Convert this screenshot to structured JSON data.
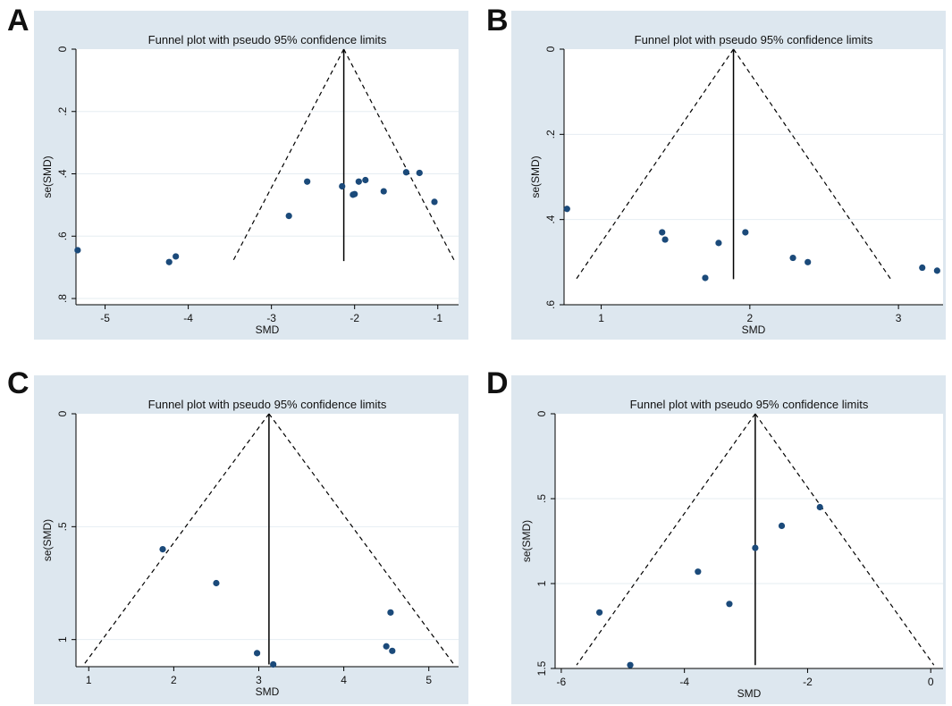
{
  "figure": {
    "colors": {
      "panel_background": "#dde7ef",
      "plot_background": "#ffffff",
      "marker": "#1b4a7a",
      "line": "#000000",
      "gridline": "#e6edf2"
    }
  },
  "chart_data": [
    {
      "panel": "A",
      "type": "scatter",
      "title": "Funnel plot with pseudo 95% confidence limits",
      "xlabel": "SMD",
      "ylabel": "se(SMD)",
      "xlim": [
        -5.35,
        -0.75
      ],
      "ylim": [
        0,
        0.82
      ],
      "y_inverted": true,
      "xticks": [
        -5,
        -4,
        -3,
        -2,
        -1
      ],
      "xtick_labels": [
        "-5",
        "-4",
        "-3",
        "-2",
        "-1"
      ],
      "yticks": [
        0,
        0.2,
        0.4,
        0.6,
        0.8
      ],
      "ytick_labels": [
        "0",
        ".2",
        ".4",
        ".6",
        ".8"
      ],
      "pooled_estimate": -2.13,
      "funnel_max_se": 0.68,
      "points": [
        {
          "x": -5.33,
          "y": 0.645
        },
        {
          "x": -4.23,
          "y": 0.683
        },
        {
          "x": -4.15,
          "y": 0.665
        },
        {
          "x": -2.79,
          "y": 0.535
        },
        {
          "x": -2.57,
          "y": 0.425
        },
        {
          "x": -2.15,
          "y": 0.44
        },
        {
          "x": -2.02,
          "y": 0.467
        },
        {
          "x": -2.0,
          "y": 0.465
        },
        {
          "x": -1.95,
          "y": 0.425
        },
        {
          "x": -1.87,
          "y": 0.42
        },
        {
          "x": -1.65,
          "y": 0.456
        },
        {
          "x": -1.38,
          "y": 0.395
        },
        {
          "x": -1.22,
          "y": 0.397
        },
        {
          "x": -1.04,
          "y": 0.49
        }
      ]
    },
    {
      "panel": "B",
      "type": "scatter",
      "title": "Funnel plot with pseudo 95% confidence limits",
      "xlabel": "SMD",
      "ylabel": "se(SMD)",
      "xlim": [
        0.75,
        3.3
      ],
      "ylim": [
        0,
        0.6
      ],
      "y_inverted": true,
      "xticks": [
        1,
        2,
        3
      ],
      "xtick_labels": [
        "1",
        "2",
        "3"
      ],
      "yticks": [
        0,
        0.2,
        0.4,
        0.6
      ],
      "ytick_labels": [
        "0",
        ".2",
        ".4",
        ".6"
      ],
      "pooled_estimate": 1.89,
      "funnel_max_se": 0.54,
      "points": [
        {
          "x": 0.77,
          "y": 0.375
        },
        {
          "x": 1.41,
          "y": 0.43
        },
        {
          "x": 1.43,
          "y": 0.447
        },
        {
          "x": 1.7,
          "y": 0.537
        },
        {
          "x": 1.79,
          "y": 0.455
        },
        {
          "x": 1.97,
          "y": 0.43
        },
        {
          "x": 2.29,
          "y": 0.49
        },
        {
          "x": 2.39,
          "y": 0.5
        },
        {
          "x": 3.16,
          "y": 0.513
        },
        {
          "x": 3.26,
          "y": 0.52
        }
      ]
    },
    {
      "panel": "C",
      "type": "scatter",
      "title": "Funnel plot with pseudo 95% confidence limits",
      "xlabel": "SMD",
      "ylabel": "se(SMD)",
      "xlim": [
        0.85,
        5.35
      ],
      "ylim": [
        0,
        1.12
      ],
      "y_inverted": true,
      "xticks": [
        1,
        2,
        3,
        4,
        5
      ],
      "xtick_labels": [
        "1",
        "2",
        "3",
        "4",
        "5"
      ],
      "yticks": [
        0,
        0.5,
        1
      ],
      "ytick_labels": [
        "0",
        ".5",
        "1"
      ],
      "pooled_estimate": 3.12,
      "funnel_max_se": 1.11,
      "points": [
        {
          "x": 1.87,
          "y": 0.6
        },
        {
          "x": 2.5,
          "y": 0.75
        },
        {
          "x": 2.98,
          "y": 1.06
        },
        {
          "x": 3.17,
          "y": 1.11
        },
        {
          "x": 4.5,
          "y": 1.03
        },
        {
          "x": 4.55,
          "y": 0.88
        },
        {
          "x": 4.57,
          "y": 1.05
        }
      ]
    },
    {
      "panel": "D",
      "type": "scatter",
      "title": "Funnel plot with pseudo 95% confidence limits",
      "xlabel": "SMD",
      "ylabel": "se(SMD)",
      "xlim": [
        -6.1,
        0.2
      ],
      "ylim": [
        0,
        1.5
      ],
      "y_inverted": true,
      "xticks": [
        -6,
        -4,
        -2,
        0
      ],
      "xtick_labels": [
        "-6",
        "-4",
        "-2",
        "0"
      ],
      "yticks": [
        0,
        0.5,
        1,
        1.5
      ],
      "ytick_labels": [
        "0",
        ".5",
        "1",
        "1.5"
      ],
      "pooled_estimate": -2.85,
      "funnel_max_se": 1.48,
      "points": [
        {
          "x": -1.8,
          "y": 0.55
        },
        {
          "x": -2.42,
          "y": 0.66
        },
        {
          "x": -2.85,
          "y": 0.79
        },
        {
          "x": -3.78,
          "y": 0.93
        },
        {
          "x": -3.27,
          "y": 1.12
        },
        {
          "x": -5.38,
          "y": 1.17
        },
        {
          "x": -4.88,
          "y": 1.48
        }
      ]
    }
  ]
}
